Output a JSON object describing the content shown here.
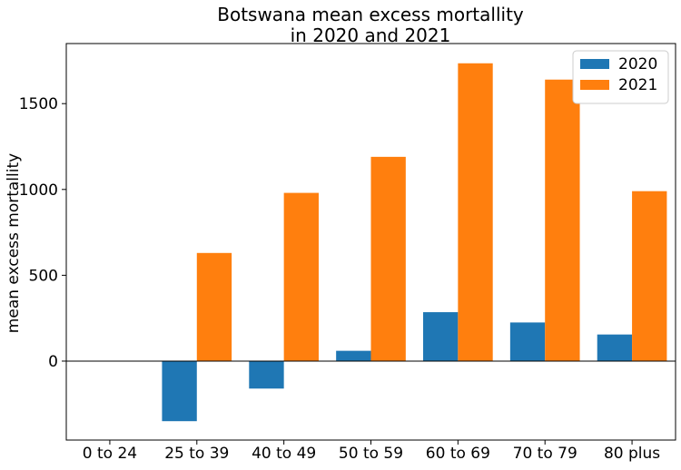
{
  "chart_data": {
    "type": "bar",
    "title": [
      "Botswana mean excess mortallity",
      "in 2020 and 2021"
    ],
    "xlabel": "",
    "ylabel": "mean excess mortallity",
    "categories": [
      "0 to 24",
      "25 to 39",
      "40 to 49",
      "50 to 59",
      "60 to 69",
      "70 to 79",
      "80 plus"
    ],
    "series": [
      {
        "name": "2020",
        "color": "#1f77b4",
        "values": [
          0,
          -350,
          -160,
          60,
          285,
          225,
          155
        ]
      },
      {
        "name": "2021",
        "color": "#ff7f0e",
        "values": [
          0,
          630,
          980,
          1190,
          1735,
          1640,
          990
        ]
      }
    ],
    "ylim": [
      -460,
      1850
    ],
    "yticks": [
      0,
      500,
      1000,
      1500
    ],
    "zero_line": true,
    "grid": false,
    "legend": "top-right"
  }
}
